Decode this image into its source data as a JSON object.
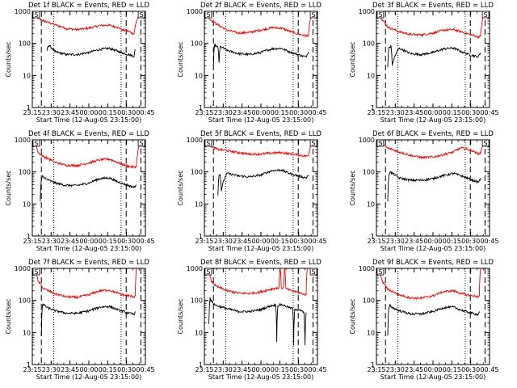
{
  "colors": {
    "events": "#000000",
    "lld": "#ff0000",
    "frame": "#000000"
  },
  "chart_data": [
    {
      "type": "line",
      "title": "Det 1f BLACK = Events, RED = LLD",
      "xlabel": "Start Time (12-Aug-05 23:15:00)",
      "ylabel": "Counts/sec",
      "yscale": "log",
      "ylim": [
        1,
        1000
      ],
      "x_tick_labels": [
        "23:15",
        "23:30",
        "23:45",
        "00:00",
        "00:15",
        "00:30",
        "00:45"
      ],
      "y_tick_labels": [
        "1",
        "10",
        "100",
        "1000"
      ],
      "event_markers": [
        "S",
        "S"
      ],
      "grid": false,
      "series": [
        {
          "color": "red",
          "x": [
            2,
            5,
            10,
            20,
            30,
            40,
            50,
            60,
            68,
            75,
            80,
            85,
            88,
            90,
            96
          ],
          "values": [
            900,
            600,
            500,
            380,
            290,
            270,
            300,
            360,
            370,
            320,
            260,
            240,
            210,
            200,
            1000
          ]
        },
        {
          "color": "black",
          "x": [
            13,
            14,
            15,
            20,
            30,
            40,
            50,
            60,
            68,
            75,
            80,
            85,
            88,
            90,
            91
          ],
          "values": [
            60,
            85,
            85,
            55,
            45,
            45,
            52,
            65,
            70,
            58,
            50,
            45,
            42,
            40,
            65
          ]
        }
      ]
    },
    {
      "type": "line",
      "title": "Det 2f BLACK = Events, RED = LLD",
      "xlabel": "Start Time (12-Aug-05 23:15:00)",
      "ylabel": "Counts/sec",
      "yscale": "log",
      "ylim": [
        1,
        1000
      ],
      "x_tick_labels": [
        "23:15",
        "23:30",
        "23:45",
        "00:00",
        "00:15",
        "00:30",
        "00:45"
      ],
      "y_tick_labels": [
        "1",
        "10",
        "100",
        "1000"
      ],
      "event_markers": [
        "S",
        "S"
      ],
      "grid": false,
      "series": [
        {
          "color": "red",
          "x": [
            2,
            5,
            10,
            14,
            20,
            30,
            40,
            50,
            60,
            68,
            75,
            80,
            85,
            90,
            92,
            96
          ],
          "values": [
            900,
            550,
            420,
            340,
            260,
            210,
            220,
            260,
            310,
            300,
            240,
            210,
            190,
            170,
            180,
            1000
          ]
        },
        {
          "color": "black",
          "x": [
            8,
            9,
            12,
            13,
            14,
            20,
            30,
            40,
            50,
            60,
            68,
            75,
            80,
            85,
            90,
            92
          ],
          "values": [
            20,
            90,
            75,
            25,
            80,
            60,
            48,
            45,
            52,
            68,
            70,
            55,
            48,
            42,
            38,
            55
          ]
        }
      ]
    },
    {
      "type": "line",
      "title": "Det 3f BLACK = Events, RED = LLD",
      "xlabel": "Start Time (12-Aug-05 23:15:00)",
      "ylabel": "Counts/sec",
      "yscale": "log",
      "ylim": [
        1,
        1000
      ],
      "x_tick_labels": [
        "23:15",
        "23:30",
        "23:45",
        "00:00",
        "00:15",
        "00:30",
        "00:45"
      ],
      "y_tick_labels": [
        "1",
        "10",
        "100",
        "1000"
      ],
      "event_markers": [
        "S",
        "S"
      ],
      "grid": false,
      "series": [
        {
          "color": "red",
          "x": [
            2,
            5,
            10,
            20,
            30,
            40,
            50,
            60,
            68,
            75,
            80,
            85,
            90,
            92,
            96
          ],
          "values": [
            900,
            550,
            320,
            230,
            190,
            185,
            210,
            260,
            270,
            230,
            200,
            180,
            160,
            170,
            1000
          ]
        },
        {
          "color": "black",
          "x": [
            10,
            11,
            13,
            14,
            20,
            30,
            40,
            50,
            60,
            68,
            75,
            80,
            85,
            90,
            92
          ],
          "values": [
            18,
            75,
            80,
            20,
            70,
            48,
            45,
            52,
            68,
            72,
            55,
            48,
            42,
            38,
            50
          ]
        }
      ]
    },
    {
      "type": "line",
      "title": "Det 4f BLACK = Events, RED = LLD",
      "xlabel": "Start Time (12-Aug-05 23:15:00)",
      "ylabel": "Counts/sec",
      "yscale": "log",
      "ylim": [
        1,
        1000
      ],
      "x_tick_labels": [
        "23:15",
        "23:30",
        "23:45",
        "00:00",
        "00:15",
        "00:30",
        "00:45"
      ],
      "y_tick_labels": [
        "1",
        "10",
        "100",
        "1000"
      ],
      "event_markers": [
        "S",
        "S"
      ],
      "grid": false,
      "series": [
        {
          "color": "red",
          "x": [
            2,
            5,
            10,
            20,
            30,
            40,
            50,
            60,
            68,
            75,
            80,
            85,
            90,
            92,
            96
          ],
          "values": [
            900,
            400,
            300,
            200,
            160,
            160,
            190,
            240,
            250,
            200,
            170,
            150,
            140,
            150,
            1000
          ]
        },
        {
          "color": "black",
          "x": [
            7,
            8,
            9,
            12,
            20,
            30,
            40,
            50,
            60,
            68,
            75,
            80,
            85,
            90,
            92
          ],
          "values": [
            12,
            55,
            75,
            60,
            45,
            38,
            38,
            45,
            62,
            65,
            50,
            43,
            38,
            33,
            40
          ]
        }
      ]
    },
    {
      "type": "line",
      "title": "Det 5f BLACK = Events, RED = LLD",
      "xlabel": "Start Time (12-Aug-05 23:15:00)",
      "ylabel": "Counts/sec",
      "yscale": "log",
      "ylim": [
        1,
        1000
      ],
      "x_tick_labels": [
        "23:15",
        "23:30",
        "23:45",
        "00:00",
        "00:15",
        "00:30",
        "00:45"
      ],
      "y_tick_labels": [
        "1",
        "10",
        "100",
        "1000"
      ],
      "event_markers": [
        "S",
        "S"
      ],
      "grid": false,
      "series": [
        {
          "color": "red",
          "x": [
            2,
            5,
            8,
            12,
            20,
            30,
            40,
            50,
            60,
            68,
            75,
            80,
            85,
            90,
            92,
            96
          ],
          "values": [
            900,
            650,
            580,
            500,
            460,
            400,
            360,
            360,
            390,
            400,
            370,
            350,
            330,
            310,
            320,
            1000
          ]
        },
        {
          "color": "black",
          "x": [
            12,
            13,
            14,
            15,
            20,
            30,
            40,
            50,
            60,
            68,
            75,
            80,
            85,
            90,
            92
          ],
          "values": [
            20,
            80,
            85,
            25,
            90,
            75,
            70,
            80,
            110,
            115,
            90,
            80,
            72,
            65,
            80
          ]
        }
      ]
    },
    {
      "type": "line",
      "title": "Det 6f BLACK = Events, RED = LLD",
      "xlabel": "Start Time (12-Aug-05 23:15:00)",
      "ylabel": "Counts/sec",
      "yscale": "log",
      "ylim": [
        1,
        1000
      ],
      "x_tick_labels": [
        "23:15",
        "23:30",
        "23:45",
        "00:00",
        "00:15",
        "00:30",
        "00:45"
      ],
      "y_tick_labels": [
        "1",
        "10",
        "100",
        "1000"
      ],
      "event_markers": [
        "S",
        "S"
      ],
      "grid": false,
      "series": [
        {
          "color": "red",
          "x": [
            2,
            5,
            10,
            20,
            30,
            40,
            50,
            60,
            68,
            75,
            80,
            85,
            90,
            92,
            96
          ],
          "values": [
            900,
            700,
            550,
            420,
            330,
            280,
            290,
            350,
            420,
            560,
            520,
            450,
            370,
            380,
            1000
          ]
        },
        {
          "color": "black",
          "x": [
            10,
            11,
            12,
            14,
            20,
            30,
            40,
            50,
            60,
            68,
            75,
            80,
            85,
            90,
            92
          ],
          "values": [
            12,
            80,
            100,
            90,
            65,
            55,
            55,
            62,
            78,
            90,
            75,
            65,
            55,
            48,
            60
          ]
        }
      ]
    },
    {
      "type": "line",
      "title": "Det 7f BLACK = Events, RED = LLD",
      "xlabel": "Start Time (12-Aug-05 23:15:00)",
      "ylabel": "Counts/sec",
      "yscale": "log",
      "ylim": [
        1,
        1000
      ],
      "x_tick_labels": [
        "23:15",
        "23:30",
        "23:45",
        "00:00",
        "00:15",
        "00:30",
        "00:45"
      ],
      "y_tick_labels": [
        "1",
        "10",
        "100",
        "1000"
      ],
      "event_markers": [
        "S"
      ],
      "grid": false,
      "series": [
        {
          "color": "red",
          "x": [
            2,
            5,
            10,
            20,
            30,
            40,
            50,
            60,
            68,
            75,
            80,
            85,
            90,
            91,
            92
          ],
          "values": [
            900,
            400,
            230,
            160,
            130,
            125,
            150,
            200,
            210,
            170,
            150,
            140,
            130,
            140,
            1000
          ]
        },
        {
          "color": "black",
          "x": [
            8,
            9,
            10,
            13,
            20,
            30,
            40,
            50,
            60,
            68,
            75,
            80,
            85,
            90,
            91
          ],
          "values": [
            8,
            70,
            75,
            60,
            48,
            40,
            40,
            47,
            62,
            65,
            52,
            46,
            40,
            37,
            45
          ]
        }
      ]
    },
    {
      "type": "line",
      "title": "Det 8f BLACK = Events, RED = LLD",
      "xlabel": "Start Time (12-Aug-05 23:15:00)",
      "ylabel": "Counts/sec",
      "yscale": "log",
      "ylim": [
        1,
        1000
      ],
      "x_tick_labels": [
        "23:15",
        "23:30",
        "23:45",
        "00:00",
        "00:15",
        "00:30",
        "00:45"
      ],
      "y_tick_labels": [
        "1",
        "10",
        "100",
        "1000"
      ],
      "event_markers": [
        "S",
        "S"
      ],
      "grid": false,
      "series": [
        {
          "color": "red",
          "x": [
            2,
            4,
            5,
            6,
            10,
            20,
            30,
            40,
            50,
            60,
            66,
            67,
            68,
            70,
            71,
            72,
            75,
            80,
            85,
            90,
            91,
            92
          ],
          "values": [
            900,
            900,
            600,
            400,
            280,
            200,
            170,
            165,
            185,
            230,
            250,
            1000,
            250,
            240,
            1000,
            240,
            210,
            190,
            170,
            150,
            1000,
            1000
          ]
        },
        {
          "color": "black",
          "x": [
            4,
            5,
            6,
            10,
            20,
            30,
            40,
            50,
            60,
            63,
            64,
            65,
            68,
            75,
            78,
            79,
            80,
            85,
            88,
            89,
            90
          ],
          "values": [
            20,
            120,
            95,
            70,
            55,
            45,
            45,
            52,
            70,
            72,
            5,
            70,
            75,
            60,
            55,
            4,
            55,
            48,
            42,
            4,
            42
          ]
        }
      ]
    },
    {
      "type": "line",
      "title": "Det 9f BLACK = Events, RED = LLD",
      "xlabel": "Start Time (12-Aug-05 23:15:00)",
      "ylabel": "Counts/sec",
      "yscale": "log",
      "ylim": [
        1,
        1000
      ],
      "x_tick_labels": [
        "23:15",
        "23:30",
        "23:45",
        "00:00",
        "00:15",
        "00:30",
        "00:45"
      ],
      "y_tick_labels": [
        "1",
        "10",
        "100",
        "1000"
      ],
      "event_markers": [
        "S"
      ],
      "grid": false,
      "series": [
        {
          "color": "red",
          "x": [
            2,
            5,
            10,
            20,
            30,
            40,
            50,
            60,
            68,
            75,
            80,
            85,
            90,
            91,
            92
          ],
          "values": [
            900,
            400,
            220,
            150,
            120,
            118,
            140,
            190,
            200,
            165,
            150,
            140,
            130,
            140,
            1000
          ]
        },
        {
          "color": "black",
          "x": [
            10,
            11,
            12,
            14,
            20,
            30,
            40,
            50,
            60,
            68,
            75,
            80,
            85,
            90,
            91
          ],
          "values": [
            8,
            60,
            70,
            60,
            48,
            38,
            38,
            45,
            60,
            62,
            50,
            44,
            40,
            36,
            45
          ]
        }
      ]
    }
  ]
}
